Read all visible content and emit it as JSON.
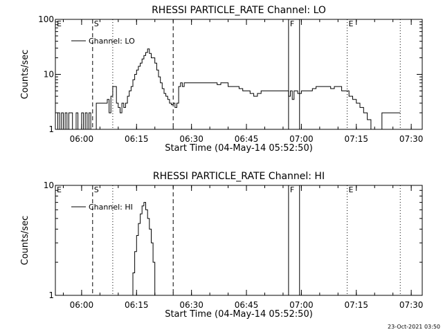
{
  "chart_data": [
    {
      "type": "line",
      "title": "RHESSI PARTICLE_RATE Channel: LO",
      "xlabel": "Start Time (04-May-14 05:52:50)",
      "ylabel": "Counts/sec",
      "xlim": [
        "05:52:50",
        "07:33:00"
      ],
      "ylim": [
        1,
        100
      ],
      "yscale": "log",
      "x_ticks": [
        "06:00",
        "06:15",
        "06:30",
        "06:45",
        "07:00",
        "07:15",
        "07:30"
      ],
      "y_ticks": [
        "1",
        "10",
        "100"
      ],
      "legend": {
        "entries": [
          "Channel: LO"
        ],
        "placement": "top-left"
      },
      "markers": [
        {
          "label": "E",
          "time": "05:52:50",
          "style": "none"
        },
        {
          "label": "S",
          "time": "06:03:00",
          "style": "dashed"
        },
        {
          "label": "",
          "time": "06:08:30",
          "style": "dotted"
        },
        {
          "label": "",
          "time": "06:25:00",
          "style": "dashed"
        },
        {
          "label": "F",
          "time": "06:56:30",
          "style": "solid"
        },
        {
          "label": "",
          "time": "06:59:30",
          "style": "solid"
        },
        {
          "label": "E",
          "time": "07:12:30",
          "style": "dotted"
        },
        {
          "label": "",
          "time": "07:27:00",
          "style": "dotted"
        }
      ],
      "series": [
        {
          "name": "Channel: LO",
          "points": [
            [
              "05:53:00",
              1
            ],
            [
              "05:53:30",
              2
            ],
            [
              "05:54:00",
              1
            ],
            [
              "05:54:30",
              2
            ],
            [
              "05:55:00",
              1
            ],
            [
              "05:55:30",
              2
            ],
            [
              "05:56:00",
              1
            ],
            [
              "05:56:30",
              2
            ],
            [
              "05:57:00",
              2
            ],
            [
              "05:57:30",
              1
            ],
            [
              "05:58:30",
              2
            ],
            [
              "05:59:00",
              1
            ],
            [
              "05:59:30",
              1
            ],
            [
              "06:00:00",
              2
            ],
            [
              "06:00:30",
              1
            ],
            [
              "06:01:00",
              2
            ],
            [
              "06:01:30",
              1
            ],
            [
              "06:02:00",
              2
            ],
            [
              "06:02:30",
              1
            ],
            [
              "06:03:00",
              1
            ],
            [
              "06:04:00",
              3
            ],
            [
              "06:05:30",
              3
            ],
            [
              "06:06:30",
              3
            ],
            [
              "06:07:00",
              3.5
            ],
            [
              "06:07:30",
              2
            ],
            [
              "06:08:00",
              4
            ],
            [
              "06:08:30",
              6
            ],
            [
              "06:09:00",
              6
            ],
            [
              "06:09:30",
              3
            ],
            [
              "06:10:00",
              2.5
            ],
            [
              "06:10:30",
              2
            ],
            [
              "06:11:00",
              3
            ],
            [
              "06:11:30",
              2.5
            ],
            [
              "06:12:00",
              3
            ],
            [
              "06:12:30",
              4
            ],
            [
              "06:13:00",
              5
            ],
            [
              "06:13:30",
              6
            ],
            [
              "06:14:00",
              8
            ],
            [
              "06:14:30",
              10
            ],
            [
              "06:15:00",
              12
            ],
            [
              "06:15:30",
              14
            ],
            [
              "06:16:00",
              16
            ],
            [
              "06:16:30",
              19
            ],
            [
              "06:17:00",
              22
            ],
            [
              "06:17:30",
              25
            ],
            [
              "06:18:00",
              29
            ],
            [
              "06:18:30",
              24
            ],
            [
              "06:19:00",
              20
            ],
            [
              "06:19:30",
              20
            ],
            [
              "06:20:00",
              16
            ],
            [
              "06:20:30",
              12
            ],
            [
              "06:21:00",
              9
            ],
            [
              "06:21:30",
              7
            ],
            [
              "06:22:00",
              5.5
            ],
            [
              "06:22:30",
              4.5
            ],
            [
              "06:23:00",
              4
            ],
            [
              "06:23:30",
              3.5
            ],
            [
              "06:24:00",
              3
            ],
            [
              "06:24:30",
              2.8
            ],
            [
              "06:25:00",
              3
            ],
            [
              "06:25:30",
              2.5
            ],
            [
              "06:26:00",
              3
            ],
            [
              "06:26:30",
              6
            ],
            [
              "06:27:00",
              7
            ],
            [
              "06:27:30",
              6
            ],
            [
              "06:28:00",
              7
            ],
            [
              "06:29:00",
              7
            ],
            [
              "06:30:00",
              7
            ],
            [
              "06:31:00",
              7
            ],
            [
              "06:32:00",
              7
            ],
            [
              "06:33:00",
              7
            ],
            [
              "06:34:00",
              7
            ],
            [
              "06:35:00",
              7
            ],
            [
              "06:36:00",
              7
            ],
            [
              "06:37:00",
              6.5
            ],
            [
              "06:38:00",
              7
            ],
            [
              "06:39:00",
              7
            ],
            [
              "06:40:00",
              6
            ],
            [
              "06:41:00",
              6
            ],
            [
              "06:42:00",
              6
            ],
            [
              "06:43:00",
              5.5
            ],
            [
              "06:44:00",
              5
            ],
            [
              "06:45:00",
              5
            ],
            [
              "06:46:00",
              4.5
            ],
            [
              "06:47:00",
              4
            ],
            [
              "06:48:00",
              4.5
            ],
            [
              "06:49:00",
              5
            ],
            [
              "06:50:00",
              5
            ],
            [
              "06:51:00",
              5
            ],
            [
              "06:52:00",
              5
            ],
            [
              "06:53:00",
              5
            ],
            [
              "06:54:00",
              5
            ],
            [
              "06:55:00",
              5
            ],
            [
              "06:56:00",
              5
            ],
            [
              "06:56:30",
              4
            ],
            [
              "06:57:00",
              5
            ],
            [
              "06:57:30",
              3.5
            ],
            [
              "06:58:00",
              5
            ],
            [
              "06:59:00",
              4.5
            ],
            [
              "07:00:00",
              5
            ],
            [
              "07:01:00",
              5
            ],
            [
              "07:02:00",
              5
            ],
            [
              "07:03:00",
              5.5
            ],
            [
              "07:04:00",
              6
            ],
            [
              "07:05:00",
              6
            ],
            [
              "07:06:00",
              6
            ],
            [
              "07:07:00",
              6
            ],
            [
              "07:08:00",
              5.5
            ],
            [
              "07:09:00",
              6
            ],
            [
              "07:10:00",
              6
            ],
            [
              "07:11:00",
              5
            ],
            [
              "07:12:00",
              5
            ],
            [
              "07:13:00",
              4
            ],
            [
              "07:14:00",
              3.5
            ],
            [
              "07:15:00",
              3
            ],
            [
              "07:16:00",
              2.5
            ],
            [
              "07:17:00",
              2
            ],
            [
              "07:18:00",
              1.5
            ],
            [
              "07:19:00",
              1
            ],
            [
              "07:20:00",
              1
            ],
            [
              "07:21:00",
              1
            ],
            [
              "07:22:00",
              2
            ],
            [
              "07:23:00",
              2
            ],
            [
              "07:24:00",
              2
            ],
            [
              "07:25:00",
              2
            ],
            [
              "07:26:00",
              2
            ],
            [
              "07:27:00",
              2
            ]
          ]
        }
      ]
    },
    {
      "type": "line",
      "title": "RHESSI PARTICLE_RATE Channel: HI",
      "xlabel": "Start Time (04-May-14 05:52:50)",
      "ylabel": "Counts/sec",
      "xlim": [
        "05:52:50",
        "07:33:00"
      ],
      "ylim": [
        1,
        10
      ],
      "yscale": "log",
      "x_ticks": [
        "06:00",
        "06:15",
        "06:30",
        "06:45",
        "07:00",
        "07:15",
        "07:30"
      ],
      "y_ticks": [
        "1",
        "10"
      ],
      "legend": {
        "entries": [
          "Channel: HI"
        ],
        "placement": "top-left"
      },
      "markers": [
        {
          "label": "E",
          "time": "05:52:50",
          "style": "none"
        },
        {
          "label": "S",
          "time": "06:03:00",
          "style": "dashed"
        },
        {
          "label": "",
          "time": "06:08:30",
          "style": "dotted"
        },
        {
          "label": "",
          "time": "06:25:00",
          "style": "dashed"
        },
        {
          "label": "F",
          "time": "06:56:30",
          "style": "solid"
        },
        {
          "label": "",
          "time": "06:59:30",
          "style": "solid"
        },
        {
          "label": "E",
          "time": "07:12:30",
          "style": "dotted"
        },
        {
          "label": "",
          "time": "07:27:00",
          "style": "dotted"
        }
      ],
      "series": [
        {
          "name": "Channel: HI",
          "points": [
            [
              "06:13:30",
              1
            ],
            [
              "06:14:00",
              1.6
            ],
            [
              "06:14:30",
              2.5
            ],
            [
              "06:15:00",
              3.5
            ],
            [
              "06:15:30",
              4.5
            ],
            [
              "06:16:00",
              5.5
            ],
            [
              "06:16:30",
              6.5
            ],
            [
              "06:17:00",
              7
            ],
            [
              "06:17:30",
              6
            ],
            [
              "06:18:00",
              5
            ],
            [
              "06:18:30",
              4
            ],
            [
              "06:19:00",
              3
            ],
            [
              "06:19:30",
              2
            ],
            [
              "06:20:00",
              1
            ]
          ]
        }
      ]
    }
  ],
  "footer": {
    "timestamp": "23-Oct-2021 03:50"
  }
}
